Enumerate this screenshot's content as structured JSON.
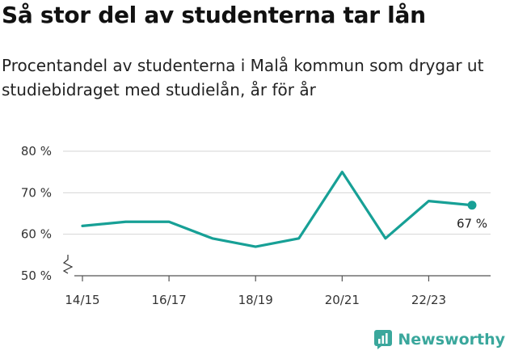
{
  "title": "Så stor del av studenterna tar lån",
  "subtitle": "Procentandel av studenterna i Malå kommun som drygar ut studiebidraget med studielån, år för år",
  "brand": {
    "name": "Newsworthy",
    "color": "#3aa79c",
    "icon": "newsworthy-logo-icon"
  },
  "chart_data": {
    "type": "line",
    "x": [
      "14/15",
      "15/16",
      "16/17",
      "17/18",
      "18/19",
      "19/20",
      "20/21",
      "21/22",
      "22/23",
      "23/24"
    ],
    "x_tick_labels": [
      "14/15",
      "16/17",
      "18/19",
      "20/21",
      "22/23"
    ],
    "series": [
      {
        "values": [
          62,
          63,
          63,
          59,
          57,
          59,
          75,
          59,
          68,
          67
        ],
        "color": "#17a096"
      }
    ],
    "y_tick_labels": [
      "50 %",
      "60 %",
      "70 %",
      "80 %"
    ],
    "y_ticks": [
      50,
      60,
      70,
      80
    ],
    "ylim": [
      50,
      80
    ],
    "y_axis_break": true,
    "grid": true,
    "last_value_label": "67 %"
  }
}
